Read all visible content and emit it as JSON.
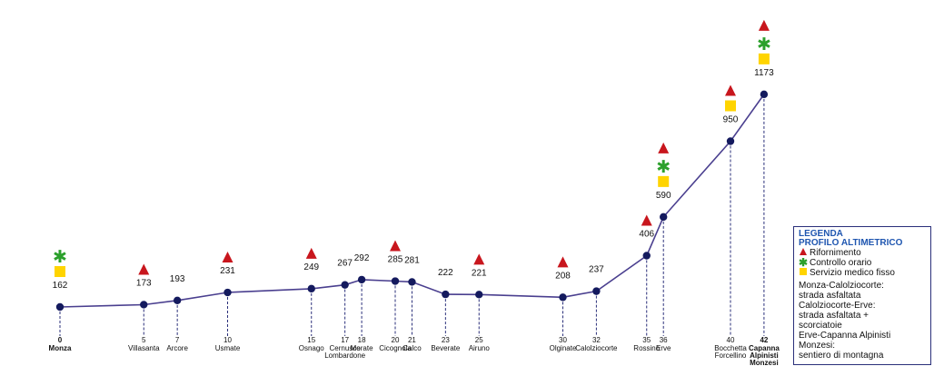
{
  "chart_data": {
    "type": "line",
    "title": "",
    "xlabel": "",
    "ylabel": "",
    "points": [
      {
        "km": "0",
        "place": "Monza",
        "alt": "162",
        "icons": [
          "star",
          "square"
        ],
        "bold": true
      },
      {
        "km": "5",
        "place": "Villasanta",
        "alt": "173",
        "icons": [
          "triangle"
        ],
        "bold": false
      },
      {
        "km": "7",
        "place": "Arcore",
        "alt": "193",
        "icons": [],
        "bold": false
      },
      {
        "km": "10",
        "place": "Usmate",
        "alt": "231",
        "icons": [
          "triangle"
        ],
        "bold": false
      },
      {
        "km": "15",
        "place": "Osnago",
        "alt": "249",
        "icons": [
          "triangle"
        ],
        "bold": false
      },
      {
        "km": "17",
        "place": "Cernusco\nLombardone",
        "alt": "267",
        "icons": [],
        "bold": false
      },
      {
        "km": "18",
        "place": "Merate",
        "alt": "292",
        "icons": [],
        "bold": false
      },
      {
        "km": "20",
        "place": "Cicognola",
        "alt": "285",
        "icons": [
          "triangle"
        ],
        "bold": false
      },
      {
        "km": "21",
        "place": "Calco",
        "alt": "281",
        "icons": [],
        "bold": false
      },
      {
        "km": "23",
        "place": "Beverate",
        "alt": "222",
        "icons": [],
        "bold": false
      },
      {
        "km": "25",
        "place": "Airuno",
        "alt": "221",
        "icons": [
          "triangle"
        ],
        "bold": false
      },
      {
        "km": "30",
        "place": "Olginate",
        "alt": "208",
        "icons": [
          "triangle"
        ],
        "bold": false
      },
      {
        "km": "32",
        "place": "Calolziocorte",
        "alt": "237",
        "icons": [],
        "bold": false
      },
      {
        "km": "35",
        "place": "Rossino",
        "alt": "406",
        "icons": [
          "triangle"
        ],
        "bold": false
      },
      {
        "km": "36",
        "place": "Erve",
        "alt": "590",
        "icons": [
          "triangle",
          "star",
          "square"
        ],
        "bold": false
      },
      {
        "km": "40",
        "place": "Bocchetta\nForcellino",
        "alt": "950",
        "icons": [
          "triangle",
          "square"
        ],
        "bold": false
      },
      {
        "km": "42",
        "place": "Capanna\nAlpinisti\nMonzesi",
        "alt": "1173",
        "icons": [
          "triangle",
          "star",
          "square"
        ],
        "bold": true
      }
    ],
    "colors": {
      "line": "#4a3f8f",
      "dot": "#141a5e",
      "drop": "#2a2f7a",
      "triangle": "#c8161d",
      "star": "#2ca02c",
      "square": "#ffd400"
    }
  },
  "legend": {
    "title_1": "LEGENDA",
    "title_2": "PROFILO ALTIMETRICO",
    "items": [
      {
        "icon": "triangle",
        "label": "Rifornimento"
      },
      {
        "icon": "star",
        "label": "Controllo orario"
      },
      {
        "icon": "square",
        "label": "Servizio medico fisso"
      }
    ],
    "routes": [
      "Monza-Calolziocorte:",
      "strada asfaltata",
      "Calolziocorte-Erve:",
      "strada asfaltata +",
      "scorciatoie",
      "Erve-Capanna Alpinisti",
      "Monzesi:",
      "sentiero di montagna"
    ]
  }
}
